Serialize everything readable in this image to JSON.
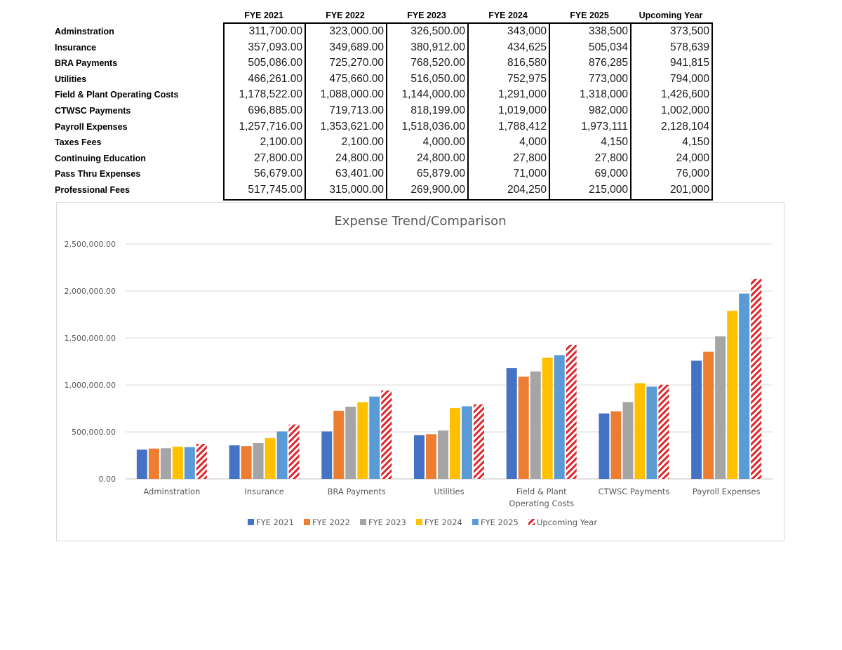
{
  "table": {
    "columns": [
      "FYE 2021",
      "FYE 2022",
      "FYE 2023",
      "FYE 2024",
      "FYE 2025",
      "Upcoming Year"
    ],
    "rows": [
      {
        "label": "Adminstration",
        "values": [
          "311,700.00",
          "323,000.00",
          "326,500.00",
          "343,000",
          "338,500",
          "373,500"
        ]
      },
      {
        "label": "Insurance",
        "values": [
          "357,093.00",
          "349,689.00",
          "380,912.00",
          "434,625",
          "505,034",
          "578,639"
        ]
      },
      {
        "label": "BRA Payments",
        "values": [
          "505,086.00",
          "725,270.00",
          "768,520.00",
          "816,580",
          "876,285",
          "941,815"
        ]
      },
      {
        "label": "Utilities",
        "values": [
          "466,261.00",
          "475,660.00",
          "516,050.00",
          "752,975",
          "773,000",
          "794,000"
        ]
      },
      {
        "label": "Field & Plant Operating Costs",
        "values": [
          "1,178,522.00",
          "1,088,000.00",
          "1,144,000.00",
          "1,291,000",
          "1,318,000",
          "1,426,600"
        ]
      },
      {
        "label": "CTWSC Payments",
        "values": [
          "696,885.00",
          "719,713.00",
          "818,199.00",
          "1,019,000",
          "982,000",
          "1,002,000"
        ]
      },
      {
        "label": "Payroll Expenses",
        "values": [
          "1,257,716.00",
          "1,353,621.00",
          "1,518,036.00",
          "1,788,412",
          "1,973,111",
          "2,128,104"
        ]
      },
      {
        "label": "Taxes Fees",
        "values": [
          "2,100.00",
          "2,100.00",
          "4,000.00",
          "4,000",
          "4,150",
          "4,150"
        ]
      },
      {
        "label": "Continuing Education",
        "values": [
          "27,800.00",
          "24,800.00",
          "24,800.00",
          "27,800",
          "27,800",
          "24,000"
        ]
      },
      {
        "label": "Pass Thru Expenses",
        "values": [
          "56,679.00",
          "63,401.00",
          "65,879.00",
          "71,000",
          "69,000",
          "76,000"
        ]
      },
      {
        "label": "Professional Fees",
        "values": [
          "517,745.00",
          "315,000.00",
          "269,900.00",
          "204,250",
          "215,000",
          "201,000"
        ]
      }
    ]
  },
  "chart_data": {
    "type": "bar",
    "title": "Expense Trend/Comparison",
    "categories": [
      [
        "Adminstration"
      ],
      [
        "Insurance"
      ],
      [
        "BRA Payments"
      ],
      [
        "Utilities"
      ],
      [
        "Field & Plant",
        "Operating Costs"
      ],
      [
        "CTWSC Payments"
      ],
      [
        "Payroll Expenses"
      ]
    ],
    "series": [
      {
        "name": "FYE 2021",
        "color": "#4472C4",
        "pattern": false,
        "values": [
          311700,
          357093,
          505086,
          466261,
          1178522,
          696885,
          1257716
        ]
      },
      {
        "name": "FYE 2022",
        "color": "#ED7D31",
        "pattern": false,
        "values": [
          323000,
          349689,
          725270,
          475660,
          1088000,
          719713,
          1353621
        ]
      },
      {
        "name": "FYE 2023",
        "color": "#A5A5A5",
        "pattern": false,
        "values": [
          326500,
          380912,
          768520,
          516050,
          1144000,
          818199,
          1518036
        ]
      },
      {
        "name": "FYE 2024",
        "color": "#FFC000",
        "pattern": false,
        "values": [
          343000,
          434625,
          816580,
          752975,
          1291000,
          1019000,
          1788412
        ]
      },
      {
        "name": "FYE 2025",
        "color": "#5B9BD5",
        "pattern": false,
        "values": [
          338500,
          505034,
          876285,
          773000,
          1318000,
          982000,
          1973111
        ]
      },
      {
        "name": "Upcoming Year",
        "color": "#E0252B",
        "pattern": true,
        "values": [
          373500,
          578639,
          941815,
          794000,
          1426600,
          1002000,
          2128104
        ]
      }
    ],
    "yticks": [
      "0.00",
      "500,000.00",
      "1,000,000.00",
      "1,500,000.00",
      "2,000,000.00",
      "2,500,000.00"
    ],
    "ylim": [
      0,
      2500000
    ],
    "grid": true,
    "legend_position": "bottom"
  }
}
